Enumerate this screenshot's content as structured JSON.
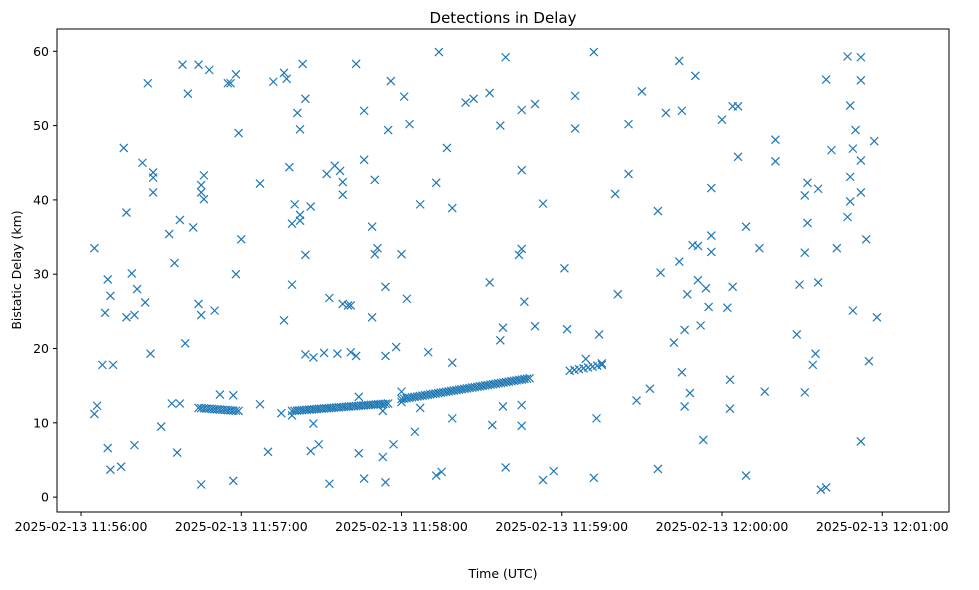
{
  "chart_data": {
    "type": "scatter",
    "title": "Detections in Delay",
    "xlabel": "Time (UTC)",
    "ylabel": "Bistatic Delay (km)",
    "marker": "x",
    "color": "#1f77b4",
    "grid": false,
    "legend": "none",
    "xlim": [
      "2025-02-13 11:55:51",
      "2025-02-13 12:01:25"
    ],
    "ylim": [
      -2,
      63
    ],
    "x_ticks": [
      "2025-02-13 11:56:00",
      "2025-02-13 11:57:00",
      "2025-02-13 11:58:00",
      "2025-02-13 11:59:00",
      "2025-02-13 12:00:00",
      "2025-02-13 12:01:00"
    ],
    "y_ticks": [
      0,
      10,
      20,
      30,
      40,
      50,
      60
    ],
    "track": [
      {
        "from": "2025-02-13 11:56:44",
        "to": "2025-02-13 11:56:59",
        "y_start": 12.0,
        "y_end": 11.6,
        "n": 16
      },
      {
        "from": "2025-02-13 11:57:19",
        "to": "2025-02-13 11:57:55",
        "y_start": 11.6,
        "y_end": 12.6,
        "n": 40
      },
      {
        "from": "2025-02-13 11:58:00",
        "to": "2025-02-13 11:58:48",
        "y_start": 13.2,
        "y_end": 16.0,
        "n": 50
      },
      {
        "from": "2025-02-13 11:59:03",
        "to": "2025-02-13 11:59:15",
        "y_start": 17.0,
        "y_end": 17.8,
        "n": 8
      }
    ],
    "points": [
      [
        "2025-02-13 11:56:05",
        33.5
      ],
      [
        "2025-02-13 11:56:05",
        11.2
      ],
      [
        "2025-02-13 11:56:06",
        12.3
      ],
      [
        "2025-02-13 11:56:08",
        17.8
      ],
      [
        "2025-02-13 11:56:09",
        24.8
      ],
      [
        "2025-02-13 11:56:10",
        29.3
      ],
      [
        "2025-02-13 11:56:10",
        6.6
      ],
      [
        "2025-02-13 11:56:11",
        27.1
      ],
      [
        "2025-02-13 11:56:11",
        3.7
      ],
      [
        "2025-02-13 11:56:12",
        17.8
      ],
      [
        "2025-02-13 11:56:15",
        4.1
      ],
      [
        "2025-02-13 11:56:16",
        47.0
      ],
      [
        "2025-02-13 11:56:17",
        38.3
      ],
      [
        "2025-02-13 11:56:17",
        24.2
      ],
      [
        "2025-02-13 11:56:19",
        30.1
      ],
      [
        "2025-02-13 11:56:20",
        24.5
      ],
      [
        "2025-02-13 11:56:20",
        7.0
      ],
      [
        "2025-02-13 11:56:21",
        28.0
      ],
      [
        "2025-02-13 11:56:23",
        45.0
      ],
      [
        "2025-02-13 11:56:24",
        26.2
      ],
      [
        "2025-02-13 11:56:25",
        55.7
      ],
      [
        "2025-02-13 11:56:26",
        19.3
      ],
      [
        "2025-02-13 11:56:27",
        43.7
      ],
      [
        "2025-02-13 11:56:27",
        43.0
      ],
      [
        "2025-02-13 11:56:27",
        41.0
      ],
      [
        "2025-02-13 11:56:30",
        9.5
      ],
      [
        "2025-02-13 11:56:33",
        35.4
      ],
      [
        "2025-02-13 11:56:34",
        12.6
      ],
      [
        "2025-02-13 11:56:35",
        31.5
      ],
      [
        "2025-02-13 11:56:36",
        6.0
      ],
      [
        "2025-02-13 11:56:37",
        37.3
      ],
      [
        "2025-02-13 11:56:37",
        12.6
      ],
      [
        "2025-02-13 11:56:38",
        58.2
      ],
      [
        "2025-02-13 11:56:39",
        20.7
      ],
      [
        "2025-02-13 11:56:40",
        54.3
      ],
      [
        "2025-02-13 11:56:42",
        36.3
      ],
      [
        "2025-02-13 11:56:44",
        58.2
      ],
      [
        "2025-02-13 11:56:44",
        26.0
      ],
      [
        "2025-02-13 11:56:45",
        24.5
      ],
      [
        "2025-02-13 11:56:45",
        42.0
      ],
      [
        "2025-02-13 11:56:45",
        41.0
      ],
      [
        "2025-02-13 11:56:46",
        40.1
      ],
      [
        "2025-02-13 11:56:46",
        43.3
      ],
      [
        "2025-02-13 11:56:45",
        1.7
      ],
      [
        "2025-02-13 11:56:48",
        57.5
      ],
      [
        "2025-02-13 11:56:50",
        25.1
      ],
      [
        "2025-02-13 11:56:52",
        13.8
      ],
      [
        "2025-02-13 11:56:55",
        55.7
      ],
      [
        "2025-02-13 11:56:56",
        55.7
      ],
      [
        "2025-02-13 11:56:57",
        2.2
      ],
      [
        "2025-02-13 11:56:57",
        13.7
      ],
      [
        "2025-02-13 11:56:58",
        30.0
      ],
      [
        "2025-02-13 11:56:58",
        56.9
      ],
      [
        "2025-02-13 11:56:59",
        49.0
      ],
      [
        "2025-02-13 11:57:00",
        34.7
      ],
      [
        "2025-02-13 11:57:07",
        42.2
      ],
      [
        "2025-02-13 11:57:07",
        12.5
      ],
      [
        "2025-02-13 11:57:10",
        6.1
      ],
      [
        "2025-02-13 11:57:12",
        55.9
      ],
      [
        "2025-02-13 11:57:15",
        11.3
      ],
      [
        "2025-02-13 11:57:16",
        57.1
      ],
      [
        "2025-02-13 11:57:16",
        23.8
      ],
      [
        "2025-02-13 11:57:17",
        56.3
      ],
      [
        "2025-02-13 11:57:18",
        44.4
      ],
      [
        "2025-02-13 11:57:19",
        11.0
      ],
      [
        "2025-02-13 11:57:19",
        28.6
      ],
      [
        "2025-02-13 11:57:19",
        36.8
      ],
      [
        "2025-02-13 11:57:20",
        39.4
      ],
      [
        "2025-02-13 11:57:21",
        51.7
      ],
      [
        "2025-02-13 11:57:22",
        49.5
      ],
      [
        "2025-02-13 11:57:22",
        37.2
      ],
      [
        "2025-02-13 11:57:22",
        38.0
      ],
      [
        "2025-02-13 11:57:23",
        58.3
      ],
      [
        "2025-02-13 11:57:24",
        32.6
      ],
      [
        "2025-02-13 11:57:24",
        53.6
      ],
      [
        "2025-02-13 11:57:24",
        19.2
      ],
      [
        "2025-02-13 11:57:26",
        39.1
      ],
      [
        "2025-02-13 11:57:26",
        6.2
      ],
      [
        "2025-02-13 11:57:27",
        9.9
      ],
      [
        "2025-02-13 11:57:27",
        18.8
      ],
      [
        "2025-02-13 11:57:29",
        7.1
      ],
      [
        "2025-02-13 11:57:31",
        19.4
      ],
      [
        "2025-02-13 11:57:32",
        43.5
      ],
      [
        "2025-02-13 11:57:33",
        26.8
      ],
      [
        "2025-02-13 11:57:33",
        1.8
      ],
      [
        "2025-02-13 11:57:35",
        44.6
      ],
      [
        "2025-02-13 11:57:36",
        19.3
      ],
      [
        "2025-02-13 11:57:37",
        43.9
      ],
      [
        "2025-02-13 11:57:38",
        42.4
      ],
      [
        "2025-02-13 11:57:38",
        40.7
      ],
      [
        "2025-02-13 11:57:38",
        26.0
      ],
      [
        "2025-02-13 11:57:40",
        25.8
      ],
      [
        "2025-02-13 11:57:41",
        25.8
      ],
      [
        "2025-02-13 11:57:41",
        19.5
      ],
      [
        "2025-02-13 11:57:43",
        58.3
      ],
      [
        "2025-02-13 11:57:43",
        19.0
      ],
      [
        "2025-02-13 11:57:44",
        13.5
      ],
      [
        "2025-02-13 11:57:44",
        5.9
      ],
      [
        "2025-02-13 11:57:46",
        52.0
      ],
      [
        "2025-02-13 11:57:46",
        45.4
      ],
      [
        "2025-02-13 11:57:46",
        2.5
      ],
      [
        "2025-02-13 11:57:49",
        36.4
      ],
      [
        "2025-02-13 11:57:49",
        24.2
      ],
      [
        "2025-02-13 11:57:50",
        42.7
      ],
      [
        "2025-02-13 11:57:50",
        32.7
      ],
      [
        "2025-02-13 11:57:51",
        33.5
      ],
      [
        "2025-02-13 11:57:53",
        11.6
      ],
      [
        "2025-02-13 11:57:53",
        5.4
      ],
      [
        "2025-02-13 11:57:54",
        19.0
      ],
      [
        "2025-02-13 11:57:54",
        28.3
      ],
      [
        "2025-02-13 11:57:54",
        2.0
      ],
      [
        "2025-02-13 11:57:55",
        49.4
      ],
      [
        "2025-02-13 11:57:56",
        56.0
      ],
      [
        "2025-02-13 11:57:57",
        7.1
      ],
      [
        "2025-02-13 11:57:58",
        20.2
      ],
      [
        "2025-02-13 11:58:00",
        32.7
      ],
      [
        "2025-02-13 11:58:00",
        14.2
      ],
      [
        "2025-02-13 11:58:00",
        12.8
      ],
      [
        "2025-02-13 11:58:01",
        53.9
      ],
      [
        "2025-02-13 11:58:02",
        26.7
      ],
      [
        "2025-02-13 11:58:03",
        50.2
      ],
      [
        "2025-02-13 11:58:05",
        8.8
      ],
      [
        "2025-02-13 11:58:07",
        39.4
      ],
      [
        "2025-02-13 11:58:07",
        12.0
      ],
      [
        "2025-02-13 11:58:10",
        19.5
      ],
      [
        "2025-02-13 11:58:13",
        42.3
      ],
      [
        "2025-02-13 11:58:13",
        2.9
      ],
      [
        "2025-02-13 11:58:14",
        59.9
      ],
      [
        "2025-02-13 11:58:15",
        3.4
      ],
      [
        "2025-02-13 11:58:17",
        47.0
      ],
      [
        "2025-02-13 11:58:19",
        18.1
      ],
      [
        "2025-02-13 11:58:19",
        38.9
      ],
      [
        "2025-02-13 11:58:19",
        10.6
      ],
      [
        "2025-02-13 11:58:24",
        53.1
      ],
      [
        "2025-02-13 11:58:27",
        53.6
      ],
      [
        "2025-02-13 11:58:33",
        54.4
      ],
      [
        "2025-02-13 11:58:33",
        28.9
      ],
      [
        "2025-02-13 11:58:34",
        9.7
      ],
      [
        "2025-02-13 11:58:37",
        21.1
      ],
      [
        "2025-02-13 11:58:37",
        50.0
      ],
      [
        "2025-02-13 11:58:38",
        22.8
      ],
      [
        "2025-02-13 11:58:38",
        12.2
      ],
      [
        "2025-02-13 11:58:39",
        59.2
      ],
      [
        "2025-02-13 11:58:39",
        4.0
      ],
      [
        "2025-02-13 11:58:44",
        32.6
      ],
      [
        "2025-02-13 11:58:45",
        33.4
      ],
      [
        "2025-02-13 11:58:45",
        44.0
      ],
      [
        "2025-02-13 11:58:45",
        52.1
      ],
      [
        "2025-02-13 11:58:45",
        12.4
      ],
      [
        "2025-02-13 11:58:45",
        9.6
      ],
      [
        "2025-02-13 11:58:46",
        26.3
      ],
      [
        "2025-02-13 11:58:50",
        52.9
      ],
      [
        "2025-02-13 11:58:50",
        23.0
      ],
      [
        "2025-02-13 11:58:53",
        39.5
      ],
      [
        "2025-02-13 11:58:53",
        2.3
      ],
      [
        "2025-02-13 11:58:57",
        3.5
      ],
      [
        "2025-02-13 11:59:01",
        30.8
      ],
      [
        "2025-02-13 11:59:02",
        22.6
      ],
      [
        "2025-02-13 11:59:05",
        54.0
      ],
      [
        "2025-02-13 11:59:05",
        49.6
      ],
      [
        "2025-02-13 11:59:09",
        18.6
      ],
      [
        "2025-02-13 11:59:12",
        59.9
      ],
      [
        "2025-02-13 11:59:12",
        2.6
      ],
      [
        "2025-02-13 11:59:13",
        10.6
      ],
      [
        "2025-02-13 11:59:14",
        21.9
      ],
      [
        "2025-02-13 11:59:15",
        18.0
      ],
      [
        "2025-02-13 11:59:20",
        40.8
      ],
      [
        "2025-02-13 11:59:21",
        27.3
      ],
      [
        "2025-02-13 11:59:25",
        50.2
      ],
      [
        "2025-02-13 11:59:25",
        43.5
      ],
      [
        "2025-02-13 11:59:28",
        13.0
      ],
      [
        "2025-02-13 11:59:30",
        54.6
      ],
      [
        "2025-02-13 11:59:33",
        14.6
      ],
      [
        "2025-02-13 11:59:36",
        38.5
      ],
      [
        "2025-02-13 11:59:36",
        3.8
      ],
      [
        "2025-02-13 11:59:37",
        30.2
      ],
      [
        "2025-02-13 11:59:39",
        51.7
      ],
      [
        "2025-02-13 11:59:42",
        20.8
      ],
      [
        "2025-02-13 11:59:44",
        31.7
      ],
      [
        "2025-02-13 11:59:44",
        58.7
      ],
      [
        "2025-02-13 11:59:45",
        52.0
      ],
      [
        "2025-02-13 11:59:45",
        16.8
      ],
      [
        "2025-02-13 11:59:46",
        22.5
      ],
      [
        "2025-02-13 11:59:46",
        12.2
      ],
      [
        "2025-02-13 11:59:47",
        27.3
      ],
      [
        "2025-02-13 11:59:48",
        14.0
      ],
      [
        "2025-02-13 11:59:49",
        33.9
      ],
      [
        "2025-02-13 11:59:50",
        56.7
      ],
      [
        "2025-02-13 11:59:51",
        33.8
      ],
      [
        "2025-02-13 11:59:51",
        29.2
      ],
      [
        "2025-02-13 11:59:52",
        23.1
      ],
      [
        "2025-02-13 11:59:53",
        7.7
      ],
      [
        "2025-02-13 11:59:54",
        28.1
      ],
      [
        "2025-02-13 11:59:55",
        25.6
      ],
      [
        "2025-02-13 11:59:56",
        41.6
      ],
      [
        "2025-02-13 11:59:56",
        33.0
      ],
      [
        "2025-02-13 11:59:56",
        35.2
      ],
      [
        "2025-02-13 12:00:00",
        50.8
      ],
      [
        "2025-02-13 12:00:02",
        25.5
      ],
      [
        "2025-02-13 12:00:03",
        11.9
      ],
      [
        "2025-02-13 12:00:03",
        15.8
      ],
      [
        "2025-02-13 12:00:04",
        52.6
      ],
      [
        "2025-02-13 12:00:04",
        28.3
      ],
      [
        "2025-02-13 12:00:06",
        45.8
      ],
      [
        "2025-02-13 12:00:06",
        52.6
      ],
      [
        "2025-02-13 12:00:09",
        36.4
      ],
      [
        "2025-02-13 12:00:09",
        2.9
      ],
      [
        "2025-02-13 12:00:14",
        33.5
      ],
      [
        "2025-02-13 12:00:16",
        14.2
      ],
      [
        "2025-02-13 12:00:20",
        48.1
      ],
      [
        "2025-02-13 12:00:20",
        45.2
      ],
      [
        "2025-02-13 12:00:28",
        21.9
      ],
      [
        "2025-02-13 12:00:29",
        28.6
      ],
      [
        "2025-02-13 12:00:31",
        40.6
      ],
      [
        "2025-02-13 12:00:31",
        14.1
      ],
      [
        "2025-02-13 12:00:31",
        32.9
      ],
      [
        "2025-02-13 12:00:32",
        42.3
      ],
      [
        "2025-02-13 12:00:32",
        36.9
      ],
      [
        "2025-02-13 12:00:34",
        17.8
      ],
      [
        "2025-02-13 12:00:35",
        19.3
      ],
      [
        "2025-02-13 12:00:36",
        28.9
      ],
      [
        "2025-02-13 12:00:36",
        41.5
      ],
      [
        "2025-02-13 12:00:37",
        1.0
      ],
      [
        "2025-02-13 12:00:39",
        1.3
      ],
      [
        "2025-02-13 12:00:39",
        56.2
      ],
      [
        "2025-02-13 12:00:41",
        46.7
      ],
      [
        "2025-02-13 12:00:43",
        33.5
      ],
      [
        "2025-02-13 12:00:47",
        59.3
      ],
      [
        "2025-02-13 12:00:47",
        37.7
      ],
      [
        "2025-02-13 12:00:48",
        39.8
      ],
      [
        "2025-02-13 12:00:48",
        43.1
      ],
      [
        "2025-02-13 12:00:48",
        52.7
      ],
      [
        "2025-02-13 12:00:49",
        46.9
      ],
      [
        "2025-02-13 12:00:49",
        25.1
      ],
      [
        "2025-02-13 12:00:50",
        49.4
      ],
      [
        "2025-02-13 12:00:52",
        59.2
      ],
      [
        "2025-02-13 12:00:52",
        56.1
      ],
      [
        "2025-02-13 12:00:52",
        45.3
      ],
      [
        "2025-02-13 12:00:52",
        41.0
      ],
      [
        "2025-02-13 12:00:52",
        7.5
      ],
      [
        "2025-02-13 12:00:54",
        34.7
      ],
      [
        "2025-02-13 12:00:55",
        18.3
      ],
      [
        "2025-02-13 12:00:57",
        47.9
      ],
      [
        "2025-02-13 12:00:58",
        24.2
      ]
    ]
  }
}
